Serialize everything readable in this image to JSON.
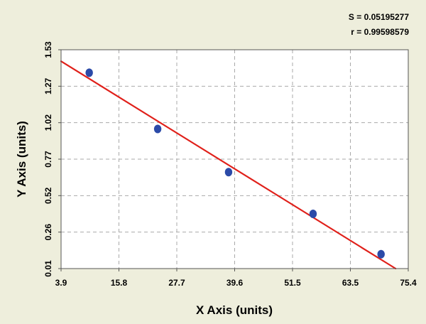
{
  "chart_data": {
    "type": "scatter",
    "xlabel": "X Axis (units)",
    "ylabel": "Y Axis (units)",
    "xlim": [
      3.9,
      75.4
    ],
    "ylim": [
      0.01,
      1.53
    ],
    "x_ticks": [
      "3.9",
      "15.8",
      "27.7",
      "39.6",
      "51.5",
      "63.5",
      "75.4"
    ],
    "y_ticks": [
      "0.01",
      "0.26",
      "0.52",
      "0.77",
      "1.02",
      "1.27",
      "1.53"
    ],
    "grid": true,
    "points": {
      "x": [
        9.7,
        23.8,
        38.4,
        55.8,
        69.8
      ],
      "y": [
        1.37,
        0.98,
        0.68,
        0.39,
        0.11
      ],
      "color": "#2b4aa8"
    },
    "fit_line": {
      "type": "linear",
      "color": "#e0201a",
      "x": [
        3.9,
        72.8
      ],
      "y": [
        1.45,
        0.01
      ]
    },
    "stats": {
      "s_text": "S = 0.05195277",
      "r_text": "r = 0.99598579"
    },
    "colors": {
      "background": "#eeeedc",
      "plot_background": "#ffffff",
      "grid": "#a9a9a9"
    }
  }
}
